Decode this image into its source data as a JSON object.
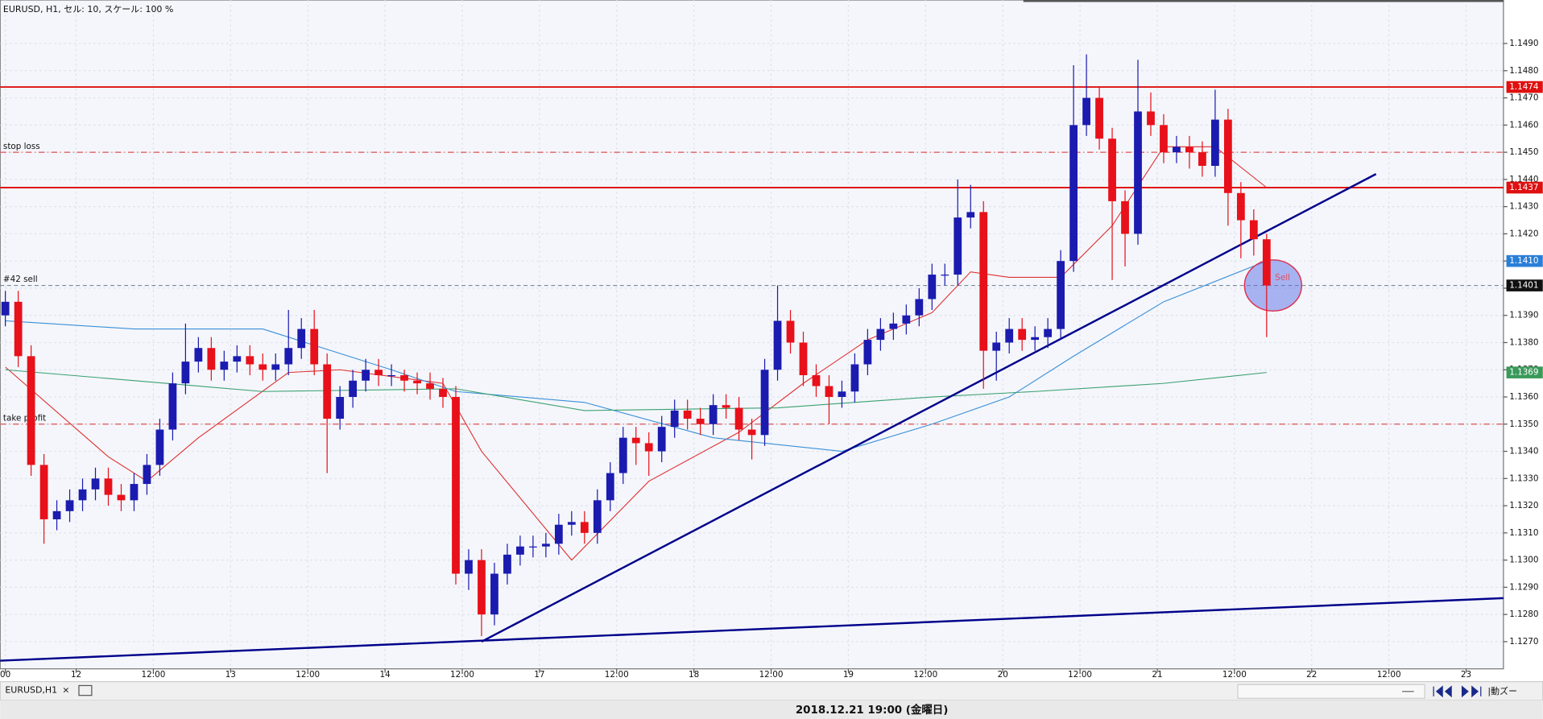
{
  "chart_data": {
    "type": "candlestick",
    "title": "EURUSD, H1, セル: 10, スケール: 100 %",
    "up_color": "#1b1bb0",
    "down_color": "#e8101a",
    "open": [
      1.139,
      1.1395,
      1.1375,
      1.1335,
      1.1315,
      1.1318,
      1.1322,
      1.1326,
      1.133,
      1.1324,
      1.1322,
      1.1328,
      1.1335,
      1.1348,
      1.1365,
      1.1373,
      1.1378,
      1.137,
      1.1373,
      1.1375,
      1.1372,
      1.137,
      1.1372,
      1.1378,
      1.1385,
      1.1372,
      1.1352,
      1.136,
      1.1366,
      1.137,
      1.1368,
      1.1368,
      1.1366,
      1.1365,
      1.1363,
      1.136,
      1.1295,
      1.13,
      1.128,
      1.1295,
      1.1302,
      1.1305,
      1.1305,
      1.1306,
      1.1313,
      1.1314,
      1.131,
      1.1322,
      1.1332,
      1.1345,
      1.1343,
      1.134,
      1.1349,
      1.1355,
      1.1352,
      1.135,
      1.1357,
      1.1356,
      1.1348,
      1.1346,
      1.137,
      1.1388,
      1.138,
      1.1368,
      1.1364,
      1.136,
      1.1362,
      1.1372,
      1.1381,
      1.1385,
      1.1387,
      1.139,
      1.1396,
      1.1405,
      1.1405,
      1.1426,
      1.1428,
      1.1377,
      1.138,
      1.1385,
      1.1381,
      1.1382,
      1.1385,
      1.141,
      1.146,
      1.147,
      1.1455,
      1.1432,
      1.142,
      1.1465,
      1.146,
      1.145,
      1.1452,
      1.145,
      1.1445,
      1.1462,
      1.1435,
      1.1425,
      1.1418
    ],
    "high": [
      1.1399,
      1.1399,
      1.1379,
      1.1339,
      1.1322,
      1.1326,
      1.133,
      1.1334,
      1.1334,
      1.1328,
      1.1332,
      1.1339,
      1.1352,
      1.1369,
      1.1387,
      1.1382,
      1.1382,
      1.1377,
      1.1379,
      1.1379,
      1.1376,
      1.1376,
      1.1392,
      1.1389,
      1.1392,
      1.1376,
      1.1364,
      1.137,
      1.1374,
      1.1374,
      1.1372,
      1.137,
      1.1369,
      1.1369,
      1.1367,
      1.1364,
      1.1304,
      1.1304,
      1.1299,
      1.1306,
      1.1309,
      1.1309,
      1.131,
      1.1317,
      1.1318,
      1.1318,
      1.1326,
      1.1336,
      1.1349,
      1.1349,
      1.1347,
      1.1353,
      1.1359,
      1.1359,
      1.1356,
      1.1361,
      1.1361,
      1.136,
      1.1352,
      1.1374,
      1.1401,
      1.1392,
      1.1384,
      1.1372,
      1.1368,
      1.1366,
      1.1376,
      1.1385,
      1.1389,
      1.1391,
      1.1394,
      1.14,
      1.1409,
      1.1409,
      1.144,
      1.1438,
      1.1432,
      1.1384,
      1.1389,
      1.1389,
      1.1386,
      1.1389,
      1.1414,
      1.1482,
      1.1486,
      1.1474,
      1.1459,
      1.1436,
      1.1484,
      1.1472,
      1.1464,
      1.1456,
      1.1456,
      1.1454,
      1.1473,
      1.1466,
      1.1439,
      1.1429,
      1.142
    ],
    "low": [
      1.1386,
      1.1371,
      1.1331,
      1.1306,
      1.1311,
      1.1314,
      1.1318,
      1.1322,
      1.132,
      1.1318,
      1.1318,
      1.1324,
      1.1331,
      1.1344,
      1.1361,
      1.1369,
      1.1366,
      1.1366,
      1.1369,
      1.1368,
      1.1366,
      1.1366,
      1.1368,
      1.1374,
      1.1368,
      1.1332,
      1.1348,
      1.1356,
      1.1362,
      1.1364,
      1.1364,
      1.1362,
      1.1361,
      1.1359,
      1.1356,
      1.1291,
      1.1289,
      1.1272,
      1.1276,
      1.1291,
      1.1298,
      1.1301,
      1.1301,
      1.1302,
      1.1309,
      1.1306,
      1.1306,
      1.1318,
      1.1328,
      1.1335,
      1.1331,
      1.1336,
      1.1345,
      1.1348,
      1.1346,
      1.1346,
      1.1352,
      1.1344,
      1.1337,
      1.1342,
      1.1366,
      1.1376,
      1.1364,
      1.136,
      1.135,
      1.1356,
      1.1358,
      1.1368,
      1.1377,
      1.1381,
      1.1383,
      1.1386,
      1.1392,
      1.1401,
      1.1401,
      1.1422,
      1.1363,
      1.1366,
      1.1376,
      1.1377,
      1.1377,
      1.1378,
      1.1381,
      1.1406,
      1.1456,
      1.1451,
      1.1403,
      1.1408,
      1.1416,
      1.1456,
      1.1446,
      1.1446,
      1.1444,
      1.1441,
      1.1441,
      1.1423,
      1.1411,
      1.1412,
      1.1382
    ],
    "close": [
      1.1395,
      1.1375,
      1.1335,
      1.1315,
      1.1318,
      1.1322,
      1.1326,
      1.133,
      1.1324,
      1.1322,
      1.1328,
      1.1335,
      1.1348,
      1.1365,
      1.1373,
      1.1378,
      1.137,
      1.1373,
      1.1375,
      1.1372,
      1.137,
      1.1372,
      1.1378,
      1.1385,
      1.1372,
      1.1352,
      1.136,
      1.1366,
      1.137,
      1.1368,
      1.1368,
      1.1366,
      1.1365,
      1.1363,
      1.136,
      1.1295,
      1.13,
      1.128,
      1.1295,
      1.1302,
      1.1305,
      1.1305,
      1.1306,
      1.1313,
      1.1314,
      1.131,
      1.1322,
      1.1332,
      1.1345,
      1.1343,
      1.134,
      1.1349,
      1.1355,
      1.1352,
      1.135,
      1.1357,
      1.1356,
      1.1348,
      1.1346,
      1.137,
      1.1388,
      1.138,
      1.1368,
      1.1364,
      1.136,
      1.1362,
      1.1372,
      1.1381,
      1.1385,
      1.1387,
      1.139,
      1.1396,
      1.1405,
      1.1405,
      1.1426,
      1.1428,
      1.1377,
      1.138,
      1.1385,
      1.1381,
      1.1382,
      1.1385,
      1.141,
      1.146,
      1.147,
      1.1455,
      1.1432,
      1.142,
      1.1465,
      1.146,
      1.145,
      1.1452,
      1.145,
      1.1445,
      1.1462,
      1.1435,
      1.1425,
      1.1418,
      1.1401
    ],
    "series": [
      {
        "color": "#e03030",
        "x": [
          0,
          8,
          11,
          15,
          22,
          26,
          34,
          37,
          44,
          50,
          57,
          62,
          67,
          72,
          75,
          78,
          82,
          86,
          90,
          94,
          98
        ],
        "values": [
          1.1371,
          1.1338,
          1.1329,
          1.1345,
          1.1369,
          1.137,
          1.1365,
          1.134,
          1.13,
          1.1329,
          1.1347,
          1.1365,
          1.1381,
          1.1391,
          1.1406,
          1.1404,
          1.1404,
          1.1423,
          1.1452,
          1.1452,
          1.1437
        ]
      },
      {
        "color": "#3a8fd8",
        "x": [
          0,
          10,
          20,
          30,
          35,
          45,
          55,
          65,
          72,
          78,
          83,
          90,
          98
        ],
        "values": [
          1.1388,
          1.1385,
          1.1385,
          1.137,
          1.1362,
          1.1358,
          1.1345,
          1.134,
          1.135,
          1.136,
          1.1375,
          1.1395,
          1.141
        ]
      },
      {
        "color": "#3aa070",
        "x": [
          0,
          20,
          35,
          45,
          60,
          72,
          80,
          90,
          98
        ],
        "values": [
          1.137,
          1.1362,
          1.1363,
          1.1355,
          1.1356,
          1.136,
          1.1362,
          1.1365,
          1.1369
        ]
      }
    ],
    "trendlines": [
      {
        "color": "#00008b",
        "x": [
          37,
          106.5
        ],
        "values": [
          1.127,
          1.1442
        ]
      },
      {
        "color": "#00008b",
        "x": [
          -0.4,
          116.4
        ],
        "values": [
          1.1263,
          1.1286
        ]
      }
    ],
    "levels": [
      {
        "value": 1.1474,
        "color": "#e01010",
        "style": "solid"
      },
      {
        "value": 1.1437,
        "color": "#e01010",
        "style": "solid"
      },
      {
        "value": 1.145,
        "label": "stop loss",
        "color": "#e05050",
        "style": "dashdot"
      },
      {
        "value": 1.135,
        "label": "take profit",
        "color": "#e05050",
        "style": "dashdot"
      },
      {
        "value": 1.1401,
        "label": "#42 sell",
        "color": "#7a8a9a",
        "style": "dashed"
      }
    ],
    "price_tags": [
      {
        "value": 1.1474,
        "label": "1.1474",
        "color": "#e01010"
      },
      {
        "value": 1.1437,
        "label": "1.1437",
        "color": "#e01010"
      },
      {
        "value": 1.141,
        "label": "1.1410",
        "color": "#2a7fd8"
      },
      {
        "value": 1.1401,
        "label": "1.1401",
        "color": "#111111"
      },
      {
        "value": 1.1369,
        "label": "1.1369",
        "color": "#3a9a5a"
      }
    ],
    "annotation": {
      "text": "Sell",
      "x": 98.5,
      "value": 1.1401
    },
    "xlim": [
      -0.4,
      116.4
    ],
    "ylim": [
      1.126,
      1.1506
    ],
    "grid": true,
    "xticks": [
      {
        "value": 0,
        "label": "00"
      },
      {
        "value": 5.5,
        "label": "12"
      },
      {
        "value": 11.5,
        "label": "12:00"
      },
      {
        "value": 17.5,
        "label": "13"
      },
      {
        "value": 23.5,
        "label": "12:00"
      },
      {
        "value": 29.5,
        "label": "14"
      },
      {
        "value": 35.5,
        "label": "12:00"
      },
      {
        "value": 41.5,
        "label": "17"
      },
      {
        "value": 47.5,
        "label": "12:00"
      },
      {
        "value": 53.5,
        "label": "18"
      },
      {
        "value": 59.5,
        "label": "12:00"
      },
      {
        "value": 65.5,
        "label": "19"
      },
      {
        "value": 71.5,
        "label": "12:00"
      },
      {
        "value": 77.5,
        "label": "20"
      },
      {
        "value": 83.5,
        "label": "12:00"
      },
      {
        "value": 89.5,
        "label": "21"
      },
      {
        "value": 95.5,
        "label": "12:00"
      },
      {
        "value": 101.5,
        "label": "22"
      },
      {
        "value": 107.5,
        "label": "12:00"
      },
      {
        "value": 113.5,
        "label": "23"
      }
    ],
    "yticks": [
      {
        "value": 1.127,
        "label": "1.1270"
      },
      {
        "value": 1.128,
        "label": "1.1280"
      },
      {
        "value": 1.129,
        "label": "1.1290"
      },
      {
        "value": 1.13,
        "label": "1.1300"
      },
      {
        "value": 1.131,
        "label": "1.1310"
      },
      {
        "value": 1.132,
        "label": "1.1320"
      },
      {
        "value": 1.133,
        "label": "1.1330"
      },
      {
        "value": 1.134,
        "label": "1.1340"
      },
      {
        "value": 1.135,
        "label": "1.1350"
      },
      {
        "value": 1.136,
        "label": "1.1360"
      },
      {
        "value": 1.137,
        "label": "1.1370"
      },
      {
        "value": 1.138,
        "label": "1.1380"
      },
      {
        "value": 1.139,
        "label": "1.1390"
      },
      {
        "value": 1.14,
        "label": "1.1400"
      },
      {
        "value": 1.141,
        "label": "1.1410"
      },
      {
        "value": 1.142,
        "label": "1.1420"
      },
      {
        "value": 1.143,
        "label": "1.1430"
      },
      {
        "value": 1.144,
        "label": "1.1440"
      },
      {
        "value": 1.145,
        "label": "1.1450"
      },
      {
        "value": 1.146,
        "label": "1.1460"
      },
      {
        "value": 1.147,
        "label": "1.1470"
      },
      {
        "value": 1.148,
        "label": "1.1480"
      },
      {
        "value": 1.149,
        "label": "1.1490"
      }
    ]
  },
  "tab": "EURUSD,H1",
  "tab_close": "×",
  "status_time": "2018.12.21 19:00 (金曜日)",
  "toolbar_text": "|動ズー"
}
